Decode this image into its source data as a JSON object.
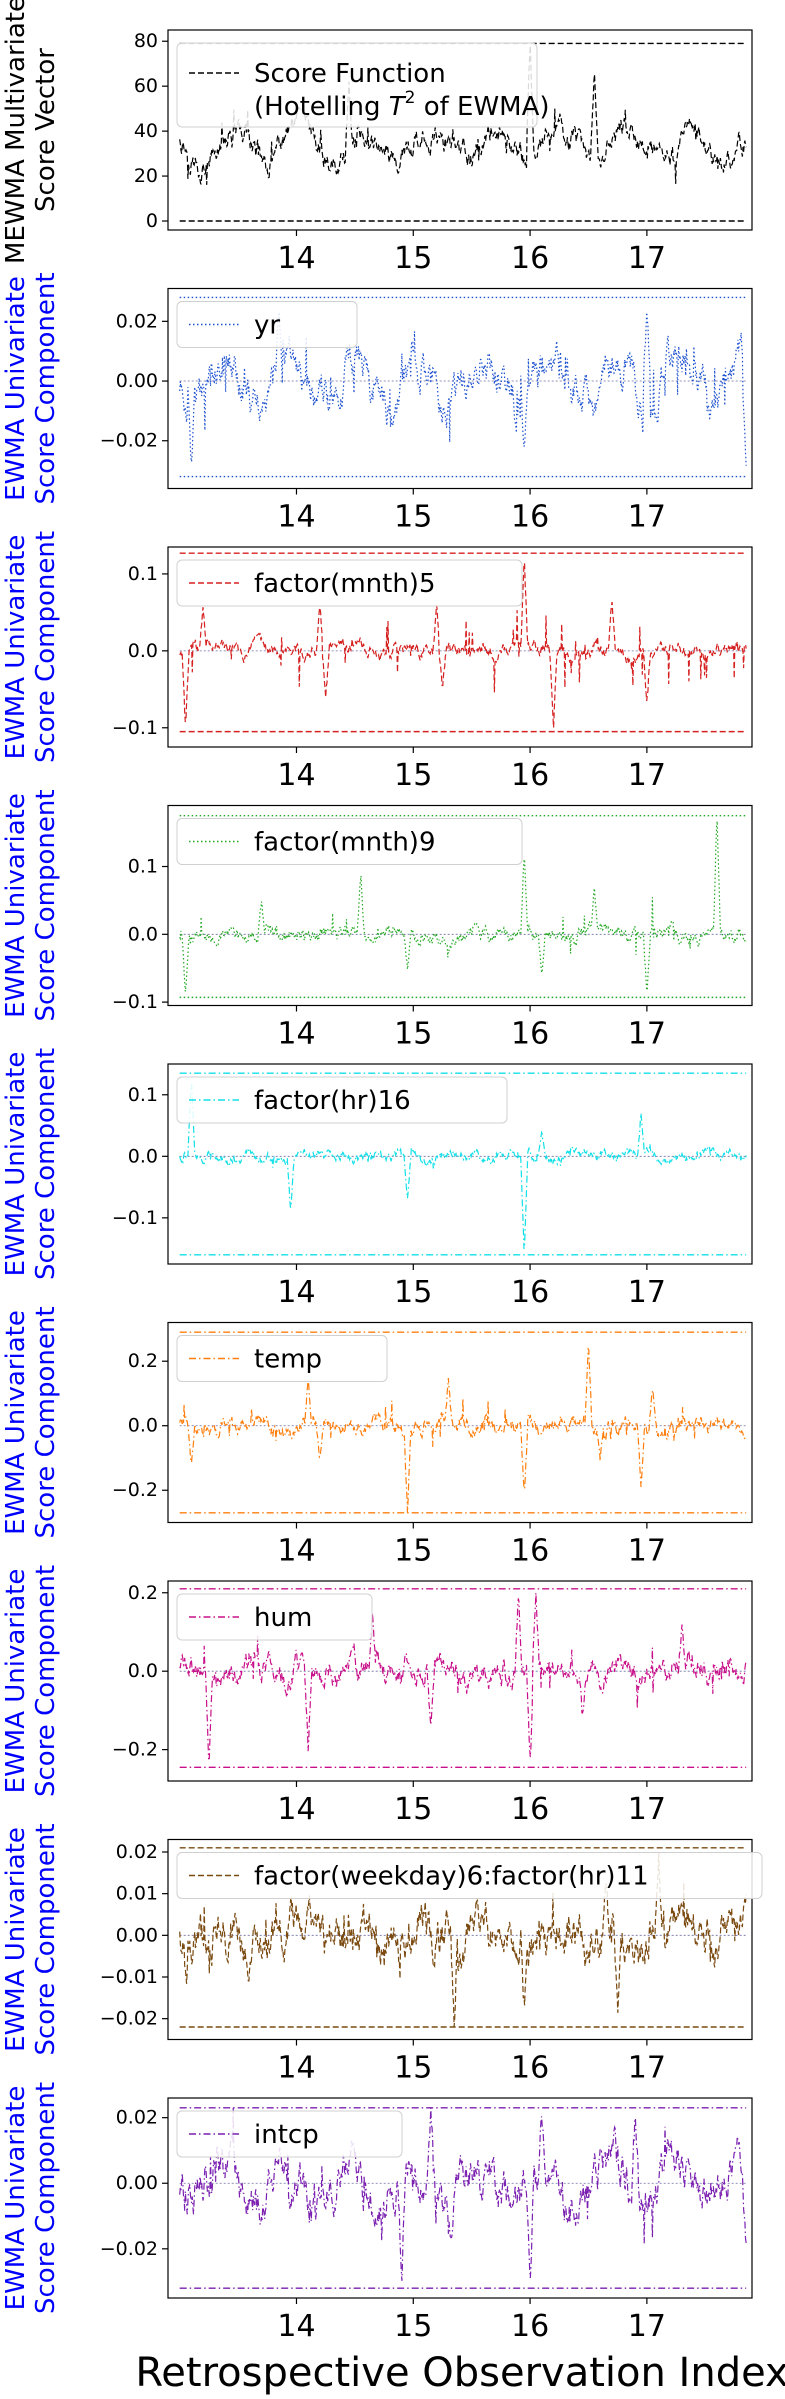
{
  "figure": {
    "xlabel": "Retrospective Observation Index",
    "x_ticks": [
      "14",
      "15",
      "16",
      "17"
    ],
    "x_tick_values": [
      14,
      15,
      16,
      17
    ],
    "xlim": [
      12.9,
      17.9
    ]
  },
  "chart_data": [
    {
      "type": "line",
      "ylabel": [
        "MEWMA Multivariate",
        "Score Vector"
      ],
      "ylabel_color": "#000000",
      "legend": {
        "label": "Score Function",
        "label2_prefix": "(Hotelling ",
        "label2_sym": "T",
        "label2_sup": "2",
        "label2_suffix": " of EWMA)",
        "position": "upper-left"
      },
      "color": "#000000",
      "linestyle": "dashed",
      "ylim": [
        -4,
        85
      ],
      "yticks": [
        0,
        20,
        40,
        60,
        80
      ],
      "ytick_labels": [
        "0",
        "20",
        "40",
        "60",
        "80"
      ],
      "limits": [
        0,
        79
      ],
      "series": {
        "center": 33,
        "amp": 7,
        "noise": 4,
        "min": 14,
        "max": 55
      },
      "spikes": [
        {
          "x": 16.0,
          "y": 81
        },
        {
          "x": 16.55,
          "y": 66
        },
        {
          "x": 14.45,
          "y": 62
        }
      ]
    },
    {
      "type": "line",
      "ylabel": [
        "EWMA Univariate",
        "Score Component"
      ],
      "ylabel_color": "#0000ff",
      "legend": {
        "label": "yr",
        "position": "upper-left"
      },
      "color": "#1a4fcf",
      "linestyle": "dotted",
      "ylim": [
        -0.036,
        0.031
      ],
      "yticks": [
        -0.02,
        0.0,
        0.02
      ],
      "ytick_labels": [
        "−0.02",
        "0.00",
        "0.02"
      ],
      "limits": [
        -0.032,
        0.028
      ],
      "series": {
        "center": 0.0,
        "amp": 0.008,
        "noise": 0.005,
        "min": -0.031,
        "max": 0.027
      },
      "spikes": [
        {
          "x": 13.1,
          "y": -0.03
        },
        {
          "x": 13.85,
          "y": 0.026
        },
        {
          "x": 15.95,
          "y": -0.025
        },
        {
          "x": 17.0,
          "y": 0.026
        },
        {
          "x": 17.85,
          "y": -0.03
        }
      ]
    },
    {
      "type": "line",
      "ylabel": [
        "EWMA Univariate",
        "Score Component"
      ],
      "ylabel_color": "#0000ff",
      "legend": {
        "label": "factor(mnth)5",
        "position": "upper-left"
      },
      "color": "#d62020",
      "linestyle": "dashed",
      "ylim": [
        -0.125,
        0.135
      ],
      "yticks": [
        -0.1,
        0.0,
        0.1
      ],
      "ytick_labels": [
        "−0.1",
        "0.0",
        "0.1"
      ],
      "limits": [
        -0.105,
        0.127
      ],
      "series": {
        "center": 0.0,
        "amp": 0.004,
        "noise": 0.007,
        "min": -0.09,
        "max": 0.1
      },
      "spikes": [
        {
          "x": 13.05,
          "y": -0.1
        },
        {
          "x": 13.2,
          "y": 0.06
        },
        {
          "x": 14.2,
          "y": 0.06
        },
        {
          "x": 14.25,
          "y": -0.06
        },
        {
          "x": 15.2,
          "y": 0.06
        },
        {
          "x": 15.25,
          "y": -0.05
        },
        {
          "x": 15.95,
          "y": 0.125
        },
        {
          "x": 16.2,
          "y": -0.1
        },
        {
          "x": 16.7,
          "y": 0.07
        },
        {
          "x": 17.0,
          "y": -0.07
        }
      ]
    },
    {
      "type": "line",
      "ylabel": [
        "EWMA Univariate",
        "Score Component"
      ],
      "ylabel_color": "#0000ff",
      "legend": {
        "label": "factor(mnth)9",
        "position": "upper-left"
      },
      "color": "#22a822",
      "linestyle": "dotted",
      "ylim": [
        -0.105,
        0.19
      ],
      "yticks": [
        -0.1,
        0.0,
        0.1
      ],
      "ytick_labels": [
        "−0.1",
        "0.0",
        "0.1"
      ],
      "limits": [
        -0.093,
        0.175
      ],
      "series": {
        "center": 0.0,
        "amp": 0.004,
        "noise": 0.008,
        "min": -0.09,
        "max": 0.1
      },
      "spikes": [
        {
          "x": 13.05,
          "y": -0.09
        },
        {
          "x": 13.7,
          "y": 0.05
        },
        {
          "x": 14.55,
          "y": 0.09
        },
        {
          "x": 14.95,
          "y": -0.05
        },
        {
          "x": 15.95,
          "y": 0.12
        },
        {
          "x": 16.1,
          "y": -0.06
        },
        {
          "x": 16.55,
          "y": 0.07
        },
        {
          "x": 17.0,
          "y": -0.09
        },
        {
          "x": 17.6,
          "y": 0.18
        }
      ]
    },
    {
      "type": "line",
      "ylabel": [
        "EWMA Univariate",
        "Score Component"
      ],
      "ylabel_color": "#0000ff",
      "legend": {
        "label": "factor(hr)16",
        "position": "upper-left"
      },
      "color": "#11e0e8",
      "linestyle": "dashdot",
      "ylim": [
        -0.175,
        0.15
      ],
      "yticks": [
        -0.1,
        0.0,
        0.1
      ],
      "ytick_labels": [
        "−0.1",
        "0.0",
        "0.1"
      ],
      "limits": [
        -0.16,
        0.135
      ],
      "series": {
        "center": 0.0,
        "amp": 0.002,
        "noise": 0.006,
        "min": -0.02,
        "max": 0.03
      },
      "spikes": [
        {
          "x": 13.95,
          "y": -0.09
        },
        {
          "x": 14.95,
          "y": -0.07
        },
        {
          "x": 15.95,
          "y": -0.16
        },
        {
          "x": 16.95,
          "y": 0.07
        },
        {
          "x": 16.1,
          "y": 0.04
        },
        {
          "x": 13.1,
          "y": 0.13
        }
      ]
    },
    {
      "type": "line",
      "ylabel": [
        "EWMA Univariate",
        "Score Component"
      ],
      "ylabel_color": "#0000ff",
      "legend": {
        "label": "temp",
        "position": "upper-left"
      },
      "color": "#ff7f0e",
      "linestyle": "dashdot",
      "ylim": [
        -0.3,
        0.32
      ],
      "yticks": [
        -0.2,
        0.0,
        0.2
      ],
      "ytick_labels": [
        "−0.2",
        "0.0",
        "0.2"
      ],
      "limits": [
        -0.27,
        0.29
      ],
      "series": {
        "center": 0.0,
        "amp": 0.01,
        "noise": 0.02,
        "min": -0.15,
        "max": 0.15
      },
      "spikes": [
        {
          "x": 13.1,
          "y": -0.12
        },
        {
          "x": 14.1,
          "y": 0.15
        },
        {
          "x": 14.2,
          "y": -0.1
        },
        {
          "x": 14.95,
          "y": -0.27
        },
        {
          "x": 15.3,
          "y": 0.15
        },
        {
          "x": 15.95,
          "y": -0.22
        },
        {
          "x": 16.5,
          "y": 0.26
        },
        {
          "x": 16.6,
          "y": -0.1
        },
        {
          "x": 16.95,
          "y": -0.2
        },
        {
          "x": 17.05,
          "y": 0.12
        }
      ]
    },
    {
      "type": "line",
      "ylabel": [
        "EWMA Univariate",
        "Score Component"
      ],
      "ylabel_color": "#0000ff",
      "legend": {
        "label": "hum",
        "position": "upper-left"
      },
      "color": "#c8108a",
      "linestyle": "dashdot",
      "ylim": [
        -0.28,
        0.23
      ],
      "yticks": [
        -0.2,
        0.0,
        0.2
      ],
      "ytick_labels": [
        "−0.2",
        "0.0",
        "0.2"
      ],
      "limits": [
        -0.245,
        0.21
      ],
      "series": {
        "center": 0.0,
        "amp": 0.01,
        "noise": 0.025,
        "min": -0.2,
        "max": 0.15
      },
      "spikes": [
        {
          "x": 13.25,
          "y": -0.24
        },
        {
          "x": 14.1,
          "y": -0.2
        },
        {
          "x": 14.65,
          "y": 0.15
        },
        {
          "x": 15.15,
          "y": -0.15
        },
        {
          "x": 15.9,
          "y": 0.2
        },
        {
          "x": 16.0,
          "y": -0.24
        },
        {
          "x": 16.05,
          "y": 0.2
        },
        {
          "x": 16.45,
          "y": -0.12
        },
        {
          "x": 17.3,
          "y": 0.12
        }
      ]
    },
    {
      "type": "line",
      "ylabel": [
        "EWMA Univariate",
        "Score Component"
      ],
      "ylabel_color": "#0000ff",
      "legend": {
        "label": "factor(weekday)6:factor(hr)11",
        "position": "upper-left"
      },
      "color": "#7a4a10",
      "linestyle": "dashed",
      "ylim": [
        -0.025,
        0.023
      ],
      "yticks": [
        -0.02,
        -0.01,
        0.0,
        0.01,
        0.02
      ],
      "ytick_labels": [
        "−0.02",
        "−0.01",
        "0.00",
        "0.01",
        "0.02"
      ],
      "limits": [
        -0.022,
        0.021
      ],
      "series": {
        "center": 0.0,
        "amp": 0.002,
        "noise": 0.004,
        "min": -0.02,
        "max": 0.015
      },
      "spikes": [
        {
          "x": 13.1,
          "y": -0.006
        },
        {
          "x": 15.35,
          "y": -0.022
        },
        {
          "x": 15.95,
          "y": -0.018
        },
        {
          "x": 16.65,
          "y": 0.014
        },
        {
          "x": 16.75,
          "y": -0.018
        },
        {
          "x": 17.1,
          "y": 0.02
        }
      ]
    },
    {
      "type": "line",
      "ylabel": [
        "EWMA Univariate",
        "Score Component"
      ],
      "ylabel_color": "#0000ff",
      "legend": {
        "label": "intcp",
        "position": "upper-left"
      },
      "color": "#7a1fb0",
      "linestyle": "dashdot",
      "ylim": [
        -0.035,
        0.026
      ],
      "yticks": [
        -0.02,
        0.0,
        0.02
      ],
      "ytick_labels": [
        "−0.02",
        "0.00",
        "0.02"
      ],
      "limits": [
        -0.032,
        0.023
      ],
      "series": {
        "center": 0.0,
        "amp": 0.006,
        "noise": 0.005,
        "min": -0.03,
        "max": 0.022
      },
      "spikes": [
        {
          "x": 14.9,
          "y": -0.03
        },
        {
          "x": 15.15,
          "y": 0.023
        },
        {
          "x": 16.0,
          "y": -0.032
        },
        {
          "x": 16.1,
          "y": 0.023
        },
        {
          "x": 16.9,
          "y": 0.022
        },
        {
          "x": 17.85,
          "y": -0.02
        }
      ]
    }
  ]
}
